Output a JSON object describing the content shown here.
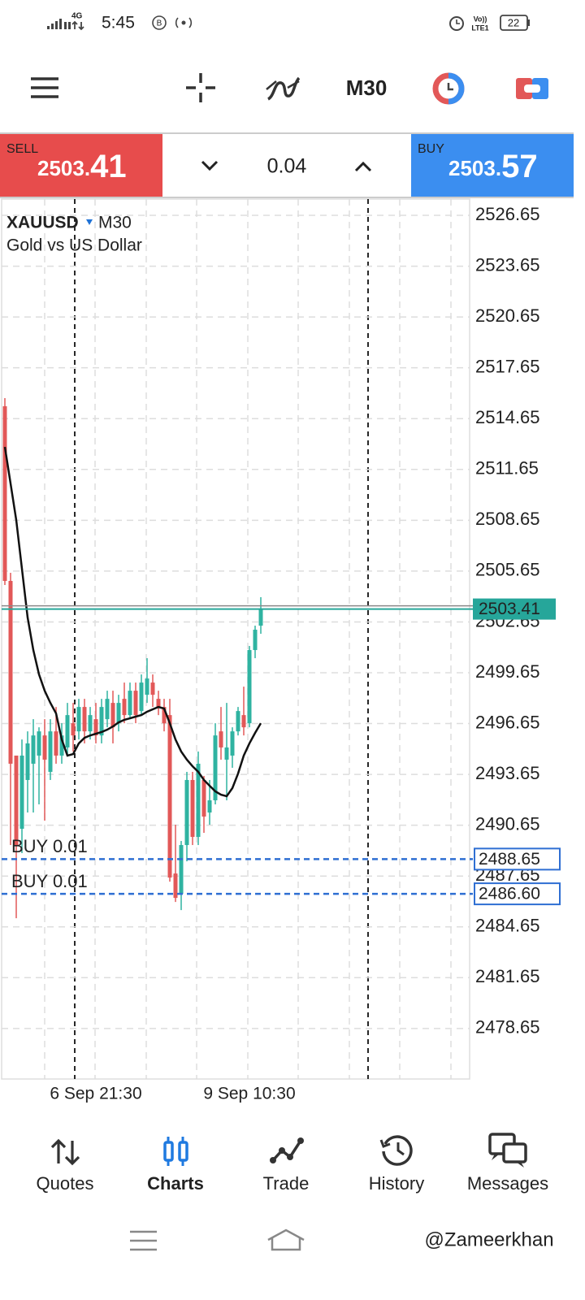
{
  "status_bar": {
    "network": "4G",
    "time": "5:45",
    "battery": "22"
  },
  "toolbar": {
    "timeframe": "M30"
  },
  "trade_bar": {
    "sell": {
      "label": "SELL",
      "price_main": "2503.",
      "price_pips": "41"
    },
    "volume": "0.04",
    "buy": {
      "label": "BUY",
      "price_main": "2503.",
      "price_pips": "57"
    }
  },
  "chart_data": {
    "type": "candlestick",
    "symbol": "XAUUSD",
    "timeframe": "M30",
    "description": "Gold vs US Dollar",
    "x": [
      null,
      null,
      null,
      null,
      null,
      null,
      null,
      null,
      null,
      null,
      null,
      null,
      null,
      null,
      null,
      null,
      "6 Sep 21:30",
      null,
      null,
      null,
      null,
      null,
      null,
      null,
      null,
      null,
      null,
      null,
      null,
      null,
      null,
      null,
      null,
      null,
      null,
      null,
      null,
      null,
      null,
      null,
      null,
      null,
      null,
      "9 Sep 10:30",
      null,
      null
    ],
    "open": [
      2515.38,
      2505.07,
      2494.76,
      2490.44,
      2493.32,
      2494.28,
      2494.76,
      2495.95,
      2493.8,
      2496.19,
      2494.76,
      2495.24,
      2496.67,
      2496.19,
      2497.63,
      2496.19,
      2496.91,
      2495.95,
      2496.91,
      2497.87,
      2496.67,
      2498.11,
      2497.15,
      2498.59,
      2497.39,
      2498.35,
      2499.07,
      2498.11,
      2497.63,
      2497.15,
      2487.8,
      2486.6,
      2489.48,
      2493.32,
      2489.96,
      2493.32,
      2491.4,
      2492.12,
      2496.19,
      2494.52,
      2494.76,
      2496.19,
      2497.15,
      2496.67,
      2500.99,
      2502.43
    ],
    "high": [
      2515.86,
      2505.55,
      2494.76,
      2495.71,
      2496.19,
      2496.91,
      2496.43,
      2496.91,
      2496.91,
      2497.63,
      2496.67,
      2497.87,
      2497.87,
      2498.11,
      2498.11,
      2497.63,
      2497.87,
      2498.11,
      2498.59,
      2498.59,
      2498.35,
      2499.07,
      2499.07,
      2499.07,
      2499.55,
      2500.51,
      2499.55,
      2498.59,
      2498.11,
      2498.11,
      2490.68,
      2489.72,
      2493.8,
      2493.8,
      2495.0,
      2493.56,
      2493.32,
      2496.67,
      2497.63,
      2497.87,
      2496.43,
      2497.63,
      2498.83,
      2501.23,
      2502.43,
      2504.11
    ],
    "low": [
      2504.83,
      2489.48,
      2485.16,
      2489.0,
      2491.4,
      2491.4,
      2491.88,
      2490.92,
      2493.32,
      2494.28,
      2494.28,
      2494.76,
      2495.0,
      2495.71,
      2495.48,
      2495.71,
      2495.48,
      2495.48,
      2496.43,
      2495.48,
      2496.19,
      2496.67,
      2496.91,
      2496.67,
      2497.15,
      2497.87,
      2497.63,
      2497.15,
      2496.19,
      2487.32,
      2486.12,
      2485.64,
      2488.52,
      2489.48,
      2489.48,
      2490.2,
      2490.68,
      2491.88,
      2494.52,
      2492.12,
      2494.04,
      2495.95,
      2495.95,
      2496.43,
      2500.51,
      2501.95
    ],
    "close": [
      2505.07,
      2494.28,
      2489.48,
      2494.76,
      2495.48,
      2495.95,
      2496.19,
      2494.52,
      2496.19,
      2494.76,
      2495.95,
      2497.15,
      2495.95,
      2497.63,
      2496.19,
      2497.15,
      2495.95,
      2497.63,
      2498.11,
      2496.43,
      2497.87,
      2497.15,
      2498.59,
      2497.15,
      2499.07,
      2499.31,
      2498.35,
      2497.63,
      2496.67,
      2487.56,
      2486.36,
      2489.48,
      2493.32,
      2489.96,
      2494.28,
      2491.16,
      2492.12,
      2495.95,
      2495.24,
      2495.24,
      2496.19,
      2497.39,
      2496.43,
      2500.99,
      2502.19,
      2503.41
    ],
    "up_color": "#2fb3a1",
    "down_color": "#e25858",
    "ma_values": [
      2512.98,
      2510.82,
      2508.66,
      2505.79,
      2502.91,
      2500.99,
      2499.55,
      2498.59,
      2497.87,
      2497.25,
      2495.71,
      2494.76,
      2494.85,
      2495.48,
      2495.81,
      2495.95,
      2496.05,
      2496.15,
      2496.29,
      2496.48,
      2496.72,
      2496.87,
      2496.96,
      2497.06,
      2497.15,
      2497.35,
      2497.49,
      2497.63,
      2497.54,
      2496.67,
      2495.71,
      2495.0,
      2494.52,
      2494.13,
      2493.8,
      2493.32,
      2492.98,
      2492.65,
      2492.45,
      2492.36,
      2492.84,
      2493.7,
      2494.76,
      2495.48,
      2496.1,
      2496.67
    ],
    "ma_color": "#111111",
    "ylim": [
      2475.67,
      2527.61
    ],
    "yticks": [
      2526.65,
      2523.65,
      2520.65,
      2517.65,
      2514.65,
      2511.65,
      2508.65,
      2505.65,
      2502.65,
      2499.65,
      2496.65,
      2493.65,
      2490.65,
      2487.65,
      2484.65,
      2481.65,
      2478.65
    ],
    "grid": true,
    "bid": 2503.41,
    "bid_color": "#26a69a",
    "orders": [
      {
        "label": "BUY 0.01",
        "price": 2488.65
      },
      {
        "label": "BUY 0.01",
        "price": {
          "value": 2486.6,
          "label": "2486.60"
        }
      }
    ],
    "order_color": "#2f6fd3"
  },
  "nav": {
    "tabs": [
      "Quotes",
      "Charts",
      "Trade",
      "History",
      "Messages"
    ],
    "active_tab": 1
  },
  "watermark": "@Zameerkhan"
}
